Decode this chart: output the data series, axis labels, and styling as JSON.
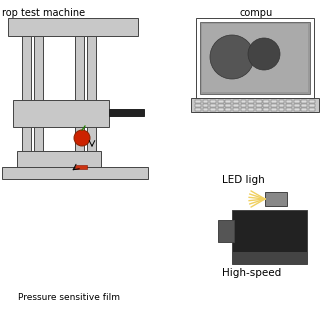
{
  "bg_color": "#ffffff",
  "gray_fill": "#c8c8c8",
  "gray_stroke": "#444444",
  "dark_fill": "#222222",
  "mid_gray": "#888888",
  "title_text": "rop test machine",
  "label_pressure": "Pressure sensitive film",
  "label_led": "LED ligh",
  "label_highspeed": "High-speed",
  "label_computer": "compu",
  "font_size": 6.5
}
